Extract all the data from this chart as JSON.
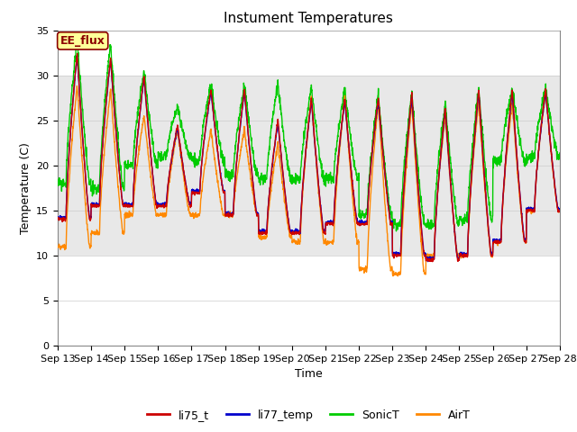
{
  "title": "Instument Temperatures",
  "ylabel": "Temperature (C)",
  "xlabel": "Time",
  "ylim": [
    0,
    35
  ],
  "yticks": [
    0,
    5,
    10,
    15,
    20,
    25,
    30,
    35
  ],
  "xtick_labels": [
    "Sep 13",
    "Sep 14",
    "Sep 15",
    "Sep 16",
    "Sep 17",
    "Sep 18",
    "Sep 19",
    "Sep 20",
    "Sep 21",
    "Sep 22",
    "Sep 23",
    "Sep 24",
    "Sep 25",
    "Sep 26",
    "Sep 27",
    "Sep 28"
  ],
  "colors": {
    "li75_t": "#cc0000",
    "li77_temp": "#0000cc",
    "SonicT": "#00cc00",
    "AirT": "#ff8800"
  },
  "shaded_band": [
    10,
    30
  ],
  "shaded_color": "#e8e8e8",
  "ee_flux_label": "EE_flux",
  "ee_flux_bg": "#ffff99",
  "ee_flux_border": "#8b0000",
  "background_color": "#ffffff",
  "title_fontsize": 11,
  "axis_label_fontsize": 9,
  "tick_fontsize": 8,
  "legend_fontsize": 9
}
